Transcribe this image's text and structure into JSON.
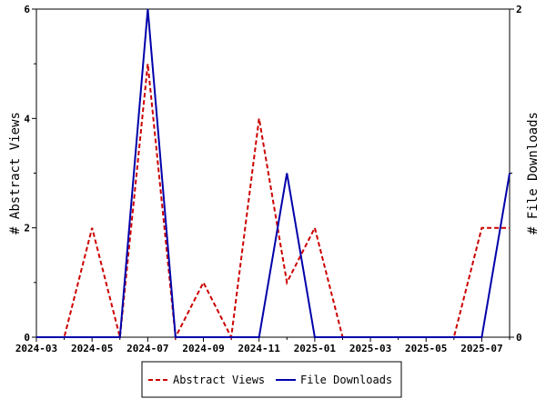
{
  "chart_data": {
    "type": "line",
    "x": [
      "2024-03",
      "2024-04",
      "2024-05",
      "2024-06",
      "2024-07",
      "2024-08",
      "2024-09",
      "2024-10",
      "2024-11",
      "2024-12",
      "2025-01",
      "2025-02",
      "2025-03",
      "2025-04",
      "2025-05",
      "2025-06",
      "2025-07",
      "2025-08"
    ],
    "x_ticks": [
      "2024-03",
      "2024-05",
      "2024-07",
      "2024-09",
      "2024-11",
      "2025-01",
      "2025-03",
      "2025-05",
      "2025-07"
    ],
    "series": [
      {
        "name": "Abstract Views",
        "axis": "left",
        "color": "#cc0000",
        "style": "dashed",
        "values": [
          0,
          0,
          2,
          0,
          5,
          0,
          1,
          0,
          4,
          1,
          2,
          0,
          0,
          0,
          0,
          0,
          2,
          2
        ]
      },
      {
        "name": "File Downloads",
        "axis": "right",
        "color": "#0000aa",
        "style": "solid",
        "values": [
          0,
          0,
          0,
          0,
          2,
          0,
          0,
          0,
          0,
          1,
          0,
          0,
          0,
          0,
          0,
          0,
          0,
          1
        ]
      }
    ],
    "ylabel": "# Abstract Views",
    "y2label": "# File Downloads",
    "ylim": [
      0,
      6
    ],
    "y_ticks": [
      0,
      2,
      4,
      6
    ],
    "y2lim": [
      0,
      2
    ],
    "y2_ticks": [
      0,
      2
    ],
    "legend": "bottom-center",
    "grid": false
  }
}
